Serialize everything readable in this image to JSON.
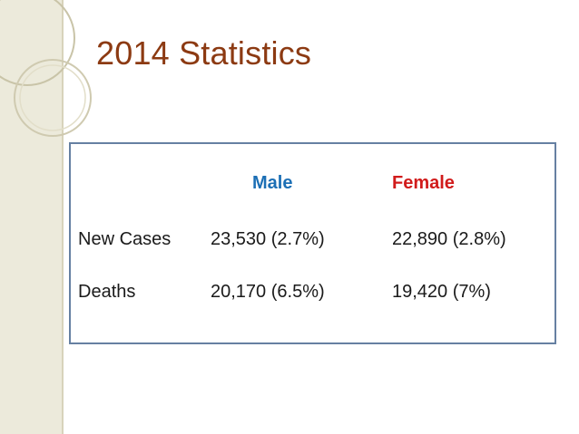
{
  "slide": {
    "title": "2014 Statistics"
  },
  "table": {
    "columns": [
      "",
      "Male",
      "Female"
    ],
    "rows": [
      {
        "label": "New Cases",
        "male": "23,530 (2.7%)",
        "female": "22,890 (2.8%)"
      },
      {
        "label": "Deaths",
        "male": "20,170 (6.5%)",
        "female": "19,420 (7%)"
      }
    ]
  },
  "colors": {
    "title": "#8c3a12",
    "male_header": "#1c6fb5",
    "female_header": "#d11b1b",
    "table_border": "#6680a2",
    "left_band": "#eceadb"
  }
}
